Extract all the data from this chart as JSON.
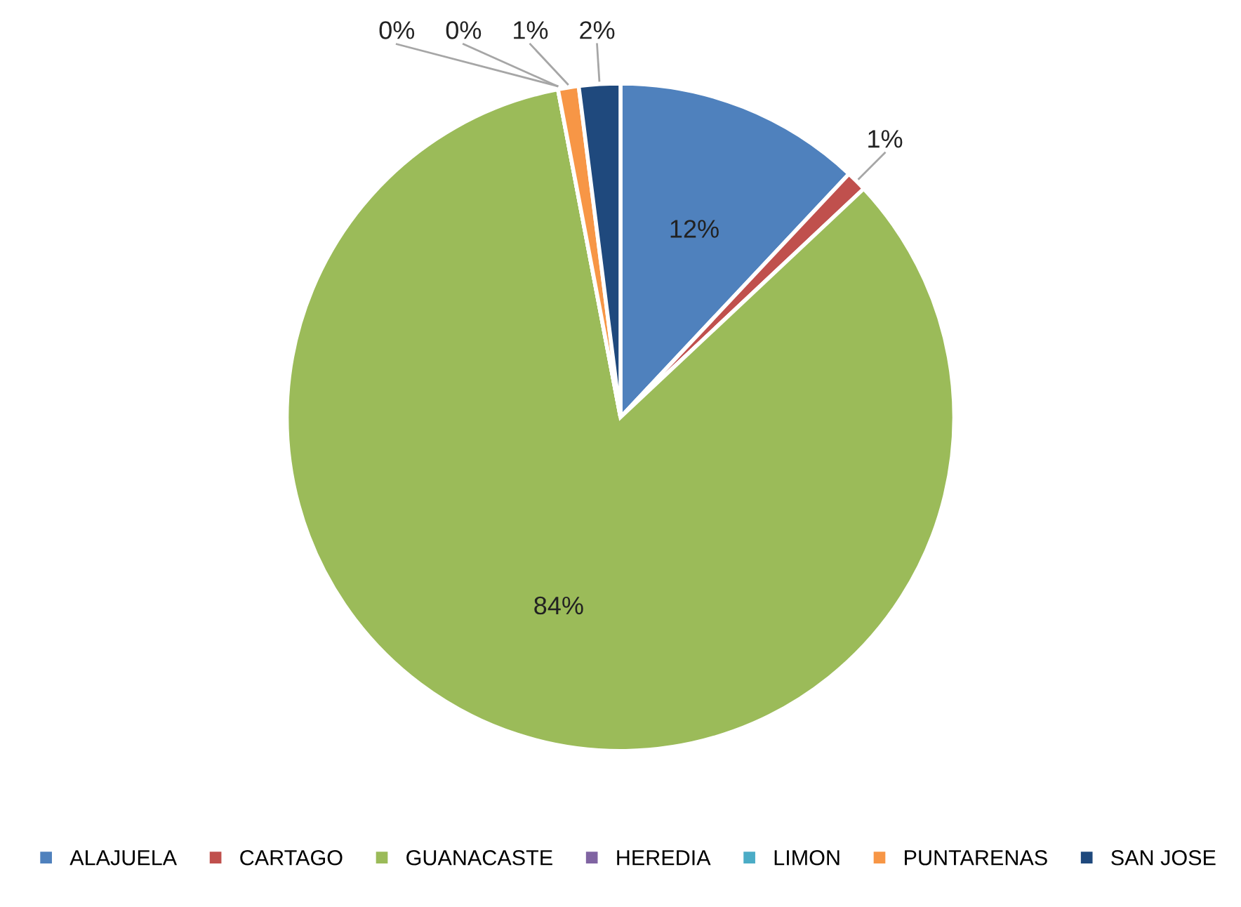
{
  "chart_data": {
    "type": "pie",
    "categories": [
      "ALAJUELA",
      "CARTAGO",
      "GUANACASTE",
      "HEREDIA",
      "LIMON",
      "PUNTARENAS",
      "SAN JOSE"
    ],
    "values": [
      12,
      1,
      84,
      0,
      0,
      1,
      2
    ],
    "value_labels": [
      "12%",
      "1%",
      "84%",
      "0%",
      "0%",
      "1%",
      "2%"
    ],
    "colors": [
      "#4f81bd",
      "#c0504d",
      "#9bbb59",
      "#8064a2",
      "#4bacc6",
      "#f79646",
      "#1f497d"
    ],
    "legend": "bottom"
  }
}
